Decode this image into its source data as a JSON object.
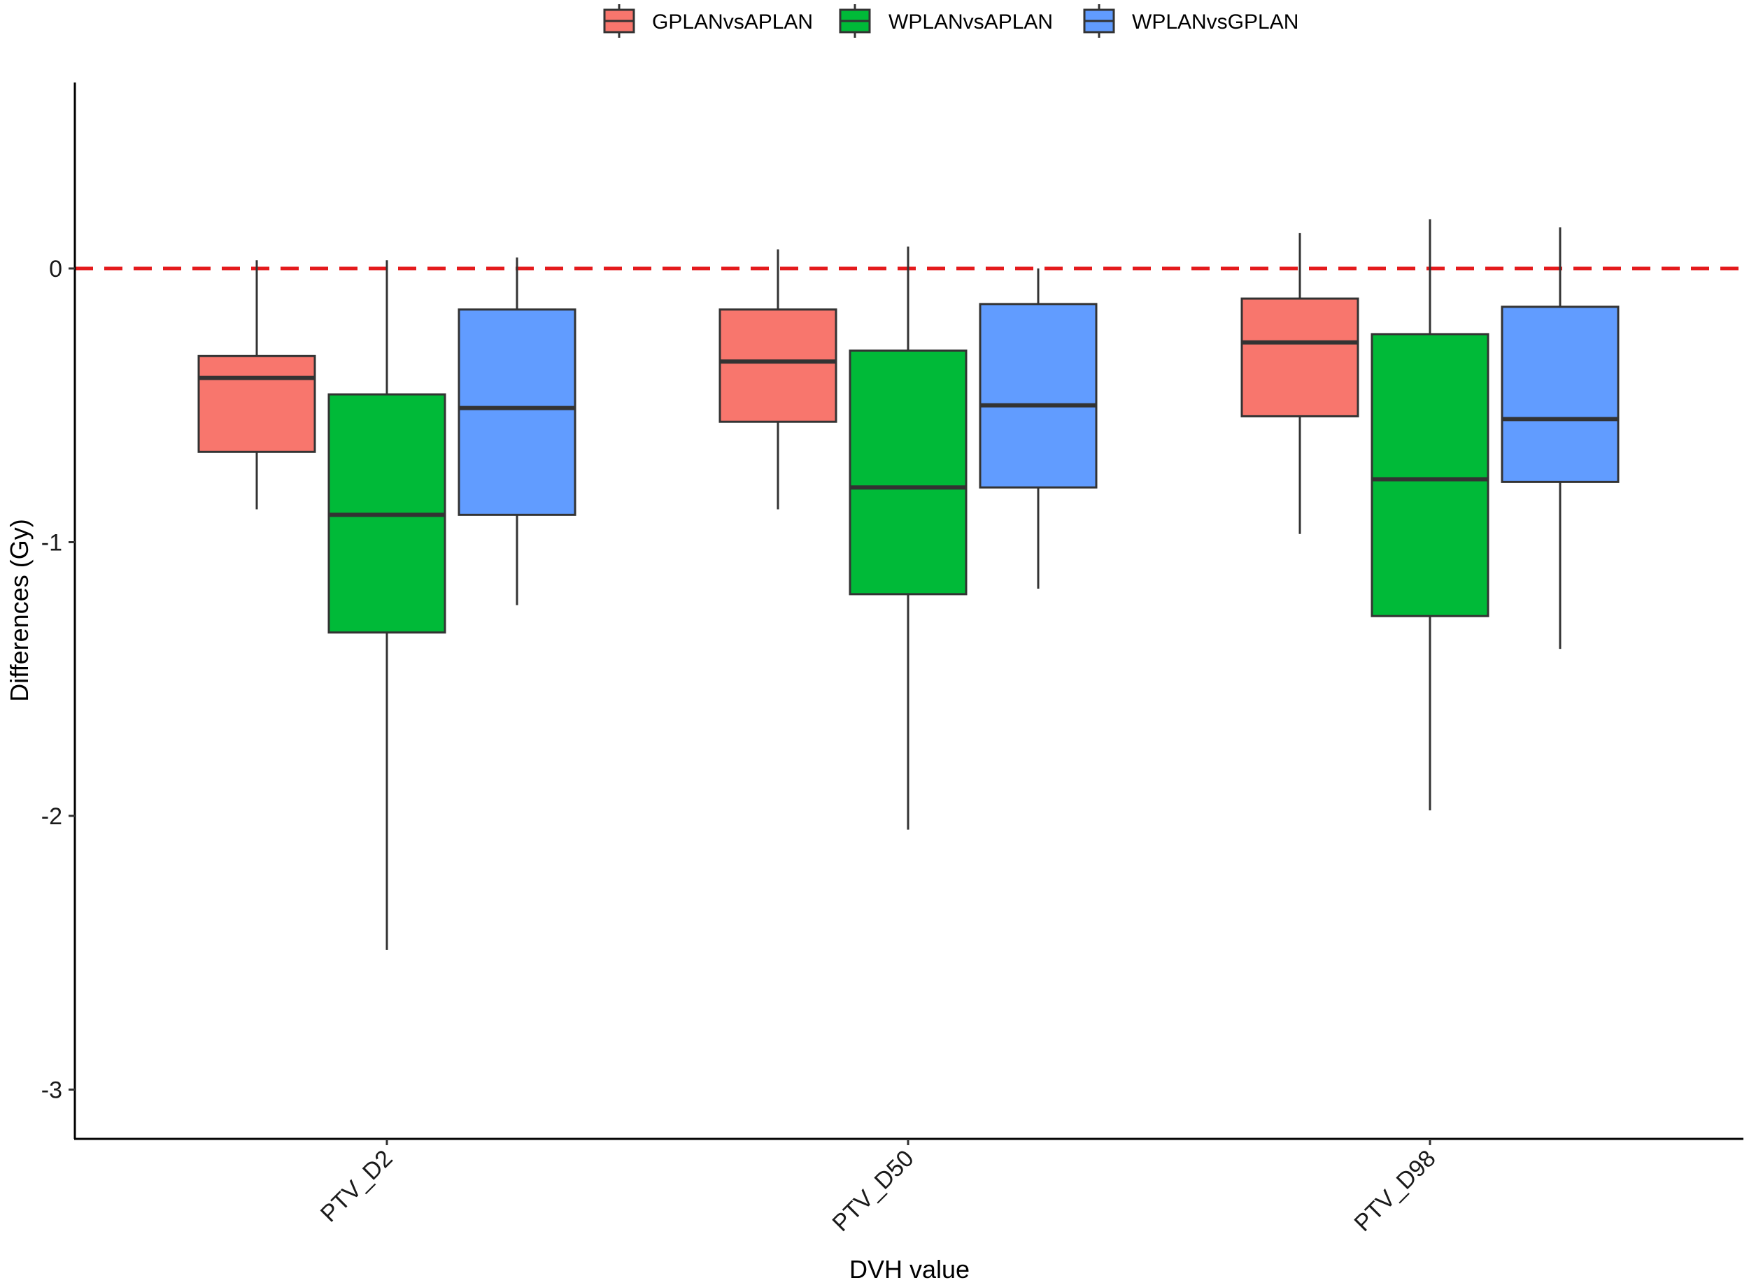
{
  "chart_data": {
    "type": "boxplot",
    "xlabel": "DVH value",
    "ylabel": "Differences (Gy)",
    "ylim": [
      -3.17,
      0.68
    ],
    "y_ticks": [
      0,
      -1,
      -2,
      -3
    ],
    "y_tick_labels": [
      "0",
      "-1",
      "-2",
      "-3"
    ],
    "reference_line": {
      "y": 0,
      "color": "#e41a1c",
      "style": "dashed"
    },
    "categories": [
      "PTV_D2",
      "PTV_D50",
      "PTV_D98"
    ],
    "legend_position": "top",
    "series": [
      {
        "name": "GPLANvsAPLAN",
        "color": "#f8766d",
        "boxes": [
          {
            "whisker_low": -0.88,
            "q1": -0.67,
            "median": -0.4,
            "q3": -0.32,
            "whisker_high": 0.03
          },
          {
            "whisker_low": -0.88,
            "q1": -0.56,
            "median": -0.34,
            "q3": -0.15,
            "whisker_high": 0.07
          },
          {
            "whisker_low": -0.97,
            "q1": -0.54,
            "median": -0.27,
            "q3": -0.11,
            "whisker_high": 0.13
          }
        ]
      },
      {
        "name": "WPLANvsAPLAN",
        "color": "#00ba38",
        "boxes": [
          {
            "whisker_low": -2.49,
            "q1": -1.33,
            "median": -0.9,
            "q3": -0.46,
            "whisker_high": 0.03
          },
          {
            "whisker_low": -2.05,
            "q1": -1.19,
            "median": -0.8,
            "q3": -0.3,
            "whisker_high": 0.08
          },
          {
            "whisker_low": -1.98,
            "q1": -1.27,
            "median": -0.77,
            "q3": -0.24,
            "whisker_high": 0.18
          }
        ]
      },
      {
        "name": "WPLANvsGPLAN",
        "color": "#619cff",
        "boxes": [
          {
            "whisker_low": -1.23,
            "q1": -0.9,
            "median": -0.51,
            "q3": -0.15,
            "whisker_high": 0.04
          },
          {
            "whisker_low": -1.17,
            "q1": -0.8,
            "median": -0.5,
            "q3": -0.13,
            "whisker_high": 0.0
          },
          {
            "whisker_low": -1.39,
            "q1": -0.78,
            "median": -0.55,
            "q3": -0.14,
            "whisker_high": 0.15
          }
        ]
      }
    ]
  }
}
